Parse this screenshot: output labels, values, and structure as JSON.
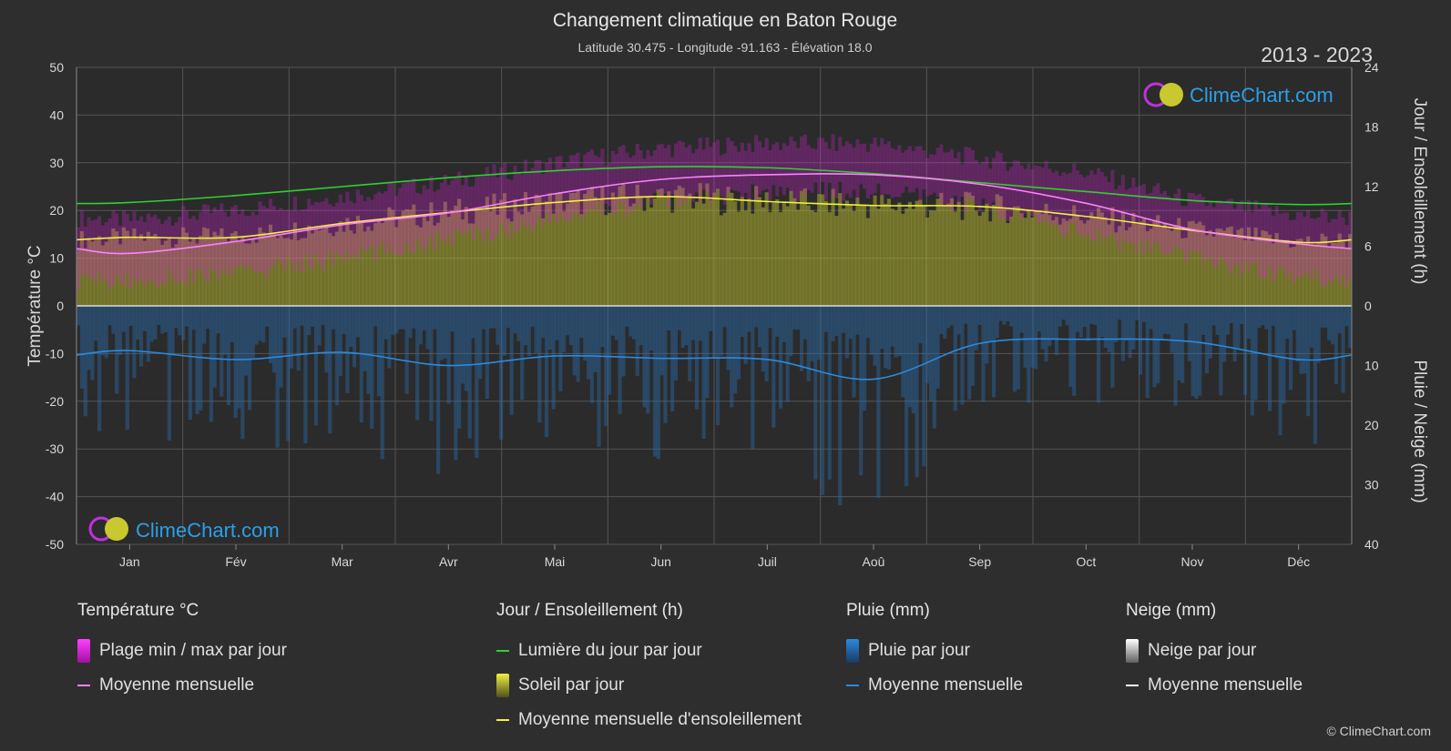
{
  "title": "Changement climatique en Baton Rouge",
  "subtitle": "Latitude 30.475 - Longitude -91.163 - Élévation 18.0",
  "period": "2013 - 2023",
  "brand": "ClimeChart.com",
  "copyright": "© ClimeChart.com",
  "colors": {
    "background": "#2e2e2e",
    "temp_range": "#e020e0",
    "temp_mean": "#ff80ff",
    "daylight": "#30d030",
    "sunshine_bar": "#b8b830",
    "sunshine_mean": "#f0f040",
    "rain_bar": "#2a6aa8",
    "rain_mean": "#2a8ae0",
    "snow_mean": "#ffffff",
    "brand": "#2aa0e8"
  },
  "chart_data": {
    "type": "area",
    "categories": [
      "Jan",
      "Fév",
      "Mar",
      "Avr",
      "Mai",
      "Jun",
      "Juil",
      "Aoû",
      "Sep",
      "Oct",
      "Nov",
      "Déc"
    ],
    "ylabel_left": "Température °C",
    "ylabel_right_top": "Jour / Ensoleillement (h)",
    "ylabel_right_bottom": "Pluie / Neige (mm)",
    "left_axis": {
      "min": -50,
      "max": 50,
      "ticks": [
        50,
        40,
        30,
        20,
        10,
        0,
        -10,
        -20,
        -30,
        -40,
        -50
      ]
    },
    "right_top_axis": {
      "min": 0,
      "max": 24,
      "ticks": [
        24,
        18,
        12,
        6,
        0
      ]
    },
    "right_bottom_axis": {
      "min": 0,
      "max": 40,
      "ticks": [
        0,
        10,
        20,
        30,
        40
      ]
    },
    "grid": true,
    "series": [
      {
        "name": "Plage min / max par jour",
        "unit": "°C",
        "min": [
          5,
          7,
          10,
          14,
          18,
          22,
          24,
          24,
          21,
          15,
          10,
          6
        ],
        "max": [
          18,
          20,
          23,
          26,
          30,
          33,
          34,
          34,
          31,
          28,
          22,
          19
        ]
      },
      {
        "name": "Moyenne mensuelle",
        "unit": "°C",
        "values": [
          11,
          13.5,
          17,
          19.5,
          23.5,
          26.5,
          27.5,
          27.5,
          25.5,
          21.5,
          16,
          13
        ]
      },
      {
        "name": "Lumière du jour par jour",
        "unit": "h",
        "values": [
          10.4,
          11.1,
          12,
          12.9,
          13.6,
          14,
          13.9,
          13.3,
          12.4,
          11.5,
          10.6,
          10.2
        ]
      },
      {
        "name": "Moyenne mensuelle d'ensoleillement",
        "unit": "h",
        "values": [
          6.9,
          6.9,
          8.3,
          9.4,
          10.4,
          11,
          10.5,
          10.1,
          10,
          9,
          7.6,
          6.4
        ]
      },
      {
        "name": "Moyenne mensuelle",
        "kind": "rain",
        "unit": "mm",
        "values": [
          7.5,
          9,
          7.8,
          10,
          8.4,
          8.8,
          9,
          12.3,
          6.3,
          5.6,
          6,
          9
        ]
      },
      {
        "name": "Moyenne mensuelle",
        "kind": "snow",
        "unit": "mm",
        "values": [
          0,
          0,
          0,
          0,
          0,
          0,
          0,
          0,
          0,
          0,
          0,
          0
        ]
      }
    ]
  },
  "legend": {
    "temperature": {
      "header": "Température °C",
      "items": [
        "Plage min / max par jour",
        "Moyenne mensuelle"
      ]
    },
    "sun": {
      "header": "Jour / Ensoleillement (h)",
      "items": [
        "Lumière du jour par jour",
        "Soleil par jour",
        "Moyenne mensuelle d'ensoleillement"
      ]
    },
    "rain": {
      "header": "Pluie (mm)",
      "items": [
        "Pluie par jour",
        "Moyenne mensuelle"
      ]
    },
    "snow": {
      "header": "Neige (mm)",
      "items": [
        "Neige par jour",
        "Moyenne mensuelle"
      ]
    }
  }
}
